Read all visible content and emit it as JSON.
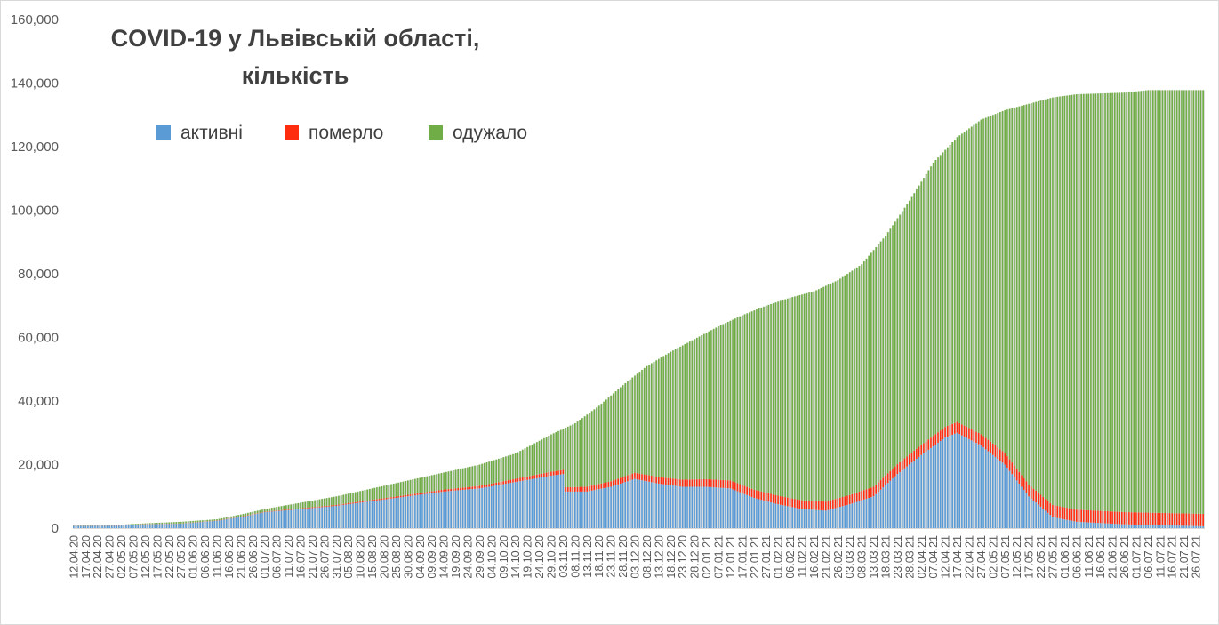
{
  "chart_data": {
    "type": "bar",
    "stacked": true,
    "title_lines": [
      "COVID-19 у Львівській області,",
      "кількість"
    ],
    "xlabel": "",
    "ylabel": "",
    "ylim": [
      0,
      160000
    ],
    "yticks": [
      "0",
      "20,000",
      "40,000",
      "60,000",
      "80,000",
      "100,000",
      "120,000",
      "140,000",
      "160,000"
    ],
    "grid": false,
    "legend_position": "top-left",
    "colors": {
      "active": "#5b9bd5",
      "died": "#ff2d0f",
      "recovered": "#70ad47",
      "separator": "#bfbfbf"
    },
    "legend": [
      {
        "key": "active",
        "name": "активні"
      },
      {
        "key": "died",
        "name": "померло"
      },
      {
        "key": "recovered",
        "name": "одужало"
      }
    ],
    "x_tick_labels": [
      "12.04.20",
      "17.04.20",
      "22.04.20",
      "27.04.20",
      "02.05.20",
      "07.05.20",
      "12.05.20",
      "17.05.20",
      "22.05.20",
      "27.05.20",
      "01.06.20",
      "06.06.20",
      "11.06.20",
      "16.06.20",
      "21.06.20",
      "26.06.20",
      "01.07.20",
      "06.07.20",
      "11.07.20",
      "16.07.20",
      "21.07.20",
      "26.07.20",
      "31.07.20",
      "05.08.20",
      "10.08.20",
      "15.08.20",
      "20.08.20",
      "25.08.20",
      "30.08.20",
      "04.09.20",
      "09.09.20",
      "14.09.20",
      "19.09.20",
      "24.09.20",
      "29.09.20",
      "04.10.20",
      "09.10.20",
      "14.10.20",
      "19.10.20",
      "24.10.20",
      "29.10.20",
      "03.11.20",
      "08.11.20",
      "13.11.20",
      "18.11.20",
      "23.11.20",
      "28.11.20",
      "03.12.20",
      "08.12.20",
      "13.12.20",
      "18.12.20",
      "23.12.20",
      "28.12.20",
      "02.01.21",
      "07.01.21",
      "12.01.21",
      "17.01.21",
      "22.01.21",
      "27.01.21",
      "01.02.21",
      "06.02.21",
      "11.02.21",
      "16.02.21",
      "21.02.21",
      "26.02.21",
      "03.03.21",
      "08.03.21",
      "13.03.21",
      "18.03.21",
      "23.03.21",
      "28.03.21",
      "02.04.21",
      "07.04.21",
      "12.04.21",
      "17.04.21",
      "22.04.21",
      "27.04.21",
      "02.05.21",
      "07.05.21",
      "12.05.21",
      "17.05.21",
      "22.05.21",
      "27.05.21",
      "01.06.21",
      "06.06.21",
      "11.06.21",
      "16.06.21",
      "21.06.21",
      "26.06.21",
      "01.07.21",
      "06.07.21",
      "11.07.21",
      "16.07.21",
      "21.07.21",
      "26.07.21"
    ],
    "series_keypoints_note_free": true,
    "date_start": "12.04.20",
    "date_end": "29.07.21",
    "series": [
      {
        "key": "total",
        "name": "",
        "points": [
          [
            "12.04.20",
            800
          ],
          [
            "02.05.20",
            1100
          ],
          [
            "12.05.20",
            1500
          ],
          [
            "27.05.20",
            2000
          ],
          [
            "11.06.20",
            2800
          ],
          [
            "21.06.20",
            4300
          ],
          [
            "01.07.20",
            6000
          ],
          [
            "16.07.20",
            8000
          ],
          [
            "31.07.20",
            10000
          ],
          [
            "15.08.20",
            12500
          ],
          [
            "30.08.20",
            15000
          ],
          [
            "14.09.20",
            17500
          ],
          [
            "29.09.20",
            20000
          ],
          [
            "14.10.20",
            23500
          ],
          [
            "29.10.20",
            29500
          ],
          [
            "08.11.20",
            33000
          ],
          [
            "18.11.20",
            38500
          ],
          [
            "28.11.20",
            45000
          ],
          [
            "08.12.20",
            51000
          ],
          [
            "18.12.20",
            55500
          ],
          [
            "28.12.20",
            59500
          ],
          [
            "07.01.21",
            63500
          ],
          [
            "17.01.21",
            67000
          ],
          [
            "27.01.21",
            70000
          ],
          [
            "06.02.21",
            72500
          ],
          [
            "16.02.21",
            74500
          ],
          [
            "26.02.21",
            78000
          ],
          [
            "08.03.21",
            83000
          ],
          [
            "18.03.21",
            92000
          ],
          [
            "28.03.21",
            103000
          ],
          [
            "07.04.21",
            115000
          ],
          [
            "17.04.21",
            123000
          ],
          [
            "27.04.21",
            128500
          ],
          [
            "07.05.21",
            131500
          ],
          [
            "17.05.21",
            133500
          ],
          [
            "27.05.21",
            135500
          ],
          [
            "06.06.21",
            136500
          ],
          [
            "26.06.21",
            137000
          ],
          [
            "06.07.21",
            137800
          ],
          [
            "29.07.21",
            137800
          ]
        ]
      },
      {
        "key": "active",
        "name": "активні",
        "points": [
          [
            "12.04.20",
            700
          ],
          [
            "02.05.20",
            800
          ],
          [
            "12.05.20",
            1200
          ],
          [
            "27.05.20",
            1400
          ],
          [
            "11.06.20",
            2300
          ],
          [
            "21.06.20",
            3500
          ],
          [
            "01.07.20",
            5000
          ],
          [
            "16.07.20",
            6000
          ],
          [
            "31.07.20",
            7000
          ],
          [
            "15.08.20",
            8500
          ],
          [
            "30.08.20",
            10000
          ],
          [
            "14.09.20",
            11500
          ],
          [
            "29.09.20",
            12500
          ],
          [
            "14.10.20",
            14500
          ],
          [
            "29.10.20",
            16500
          ],
          [
            "03.11.20",
            17000
          ],
          [
            "04.11.20",
            11500
          ],
          [
            "13.11.20",
            11500
          ],
          [
            "23.11.20",
            13000
          ],
          [
            "03.12.20",
            15500
          ],
          [
            "13.12.20",
            14000
          ],
          [
            "23.12.20",
            13000
          ],
          [
            "02.01.21",
            13000
          ],
          [
            "12.01.21",
            12500
          ],
          [
            "22.01.21",
            9500
          ],
          [
            "01.02.21",
            7500
          ],
          [
            "11.02.21",
            6000
          ],
          [
            "21.02.21",
            5500
          ],
          [
            "03.03.21",
            7500
          ],
          [
            "13.03.21",
            10000
          ],
          [
            "23.03.21",
            17000
          ],
          [
            "02.04.21",
            23000
          ],
          [
            "12.04.21",
            28500
          ],
          [
            "17.04.21",
            30000
          ],
          [
            "27.04.21",
            26000
          ],
          [
            "07.05.21",
            20000
          ],
          [
            "17.05.21",
            10000
          ],
          [
            "27.05.21",
            3500
          ],
          [
            "06.06.21",
            2000
          ],
          [
            "26.06.21",
            1200
          ],
          [
            "29.07.21",
            600
          ]
        ]
      },
      {
        "key": "died",
        "name": "померло",
        "points": [
          [
            "12.04.20",
            50
          ],
          [
            "12.05.20",
            60
          ],
          [
            "01.06.20",
            60
          ],
          [
            "01.07.20",
            150
          ],
          [
            "01.08.20",
            300
          ],
          [
            "01.09.20",
            500
          ],
          [
            "01.10.20",
            800
          ],
          [
            "01.11.20",
            1300
          ],
          [
            "01.12.20",
            1900
          ],
          [
            "01.01.21",
            2400
          ],
          [
            "01.02.21",
            2700
          ],
          [
            "01.03.21",
            2900
          ],
          [
            "01.04.21",
            3200
          ],
          [
            "01.05.21",
            3600
          ],
          [
            "01.06.21",
            3800
          ],
          [
            "01.07.21",
            3850
          ],
          [
            "29.07.21",
            3900
          ]
        ]
      }
    ]
  }
}
